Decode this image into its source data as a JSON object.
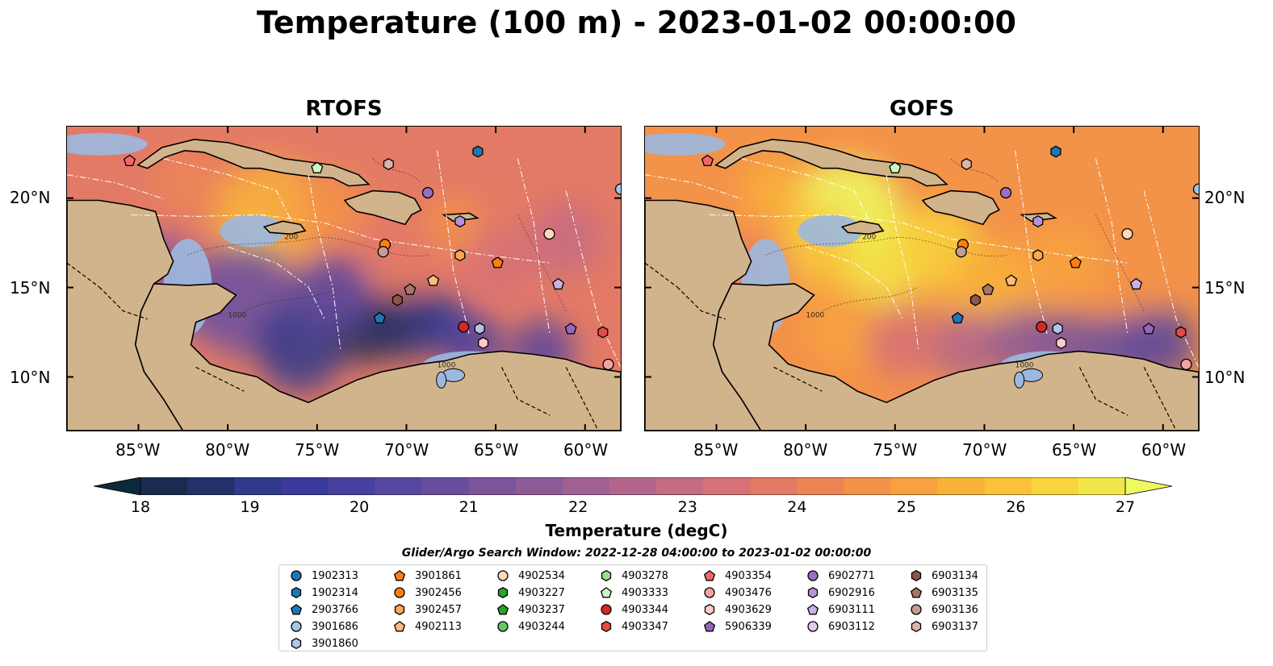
{
  "title": "Temperature (100 m) - 2023-01-02 00:00:00",
  "panels": [
    {
      "title": "RTOFS"
    },
    {
      "title": "GOFS"
    }
  ],
  "lon_ticks": [
    "85°W",
    "80°W",
    "75°W",
    "70°W",
    "65°W",
    "60°W"
  ],
  "lat_ticks": [
    "20°N",
    "15°N",
    "10°N"
  ],
  "colorbar": {
    "label": "Temperature (degC)",
    "ticks": [
      "18",
      "19",
      "20",
      "21",
      "22",
      "23",
      "24",
      "25",
      "26",
      "27"
    ],
    "colors": [
      "#0a2a3a",
      "#1a2a50",
      "#24306a",
      "#303a8c",
      "#3a3a9c",
      "#48409e",
      "#58479e",
      "#684f9e",
      "#7a559c",
      "#8c5b98",
      "#a06092",
      "#b3668c",
      "#c56b82",
      "#d67176",
      "#e37a66",
      "#ec8556",
      "#f39249",
      "#f7a23e",
      "#f9b238",
      "#fac238",
      "#f8d43d",
      "#f3e64a",
      "#eefb60"
    ]
  },
  "legend": {
    "title": "Glider/Argo Search Window: 2022-12-28 04:00:00 to 2023-01-02 00:00:00",
    "items": [
      {
        "id": "1902313",
        "marker": "circle",
        "color": "#1f77b4"
      },
      {
        "id": "1902314",
        "marker": "hexagon",
        "color": "#1f77b4"
      },
      {
        "id": "2903766",
        "marker": "pentagon",
        "color": "#1f77b4"
      },
      {
        "id": "3901686",
        "marker": "circle",
        "color": "#9ec9ea"
      },
      {
        "id": "3901860",
        "marker": "hexagon",
        "color": "#aec7e8"
      },
      {
        "id": "3901861",
        "marker": "pentagon",
        "color": "#ff7f0e"
      },
      {
        "id": "3902456",
        "marker": "circle",
        "color": "#ff7f0e"
      },
      {
        "id": "3902457",
        "marker": "hexagon",
        "color": "#ffa555"
      },
      {
        "id": "4902113",
        "marker": "pentagon",
        "color": "#ffbb78"
      },
      {
        "id": "4902534",
        "marker": "circle",
        "color": "#ffd8b8"
      },
      {
        "id": "4903227",
        "marker": "hexagon",
        "color": "#2ca02c"
      },
      {
        "id": "4903237",
        "marker": "pentagon",
        "color": "#2ca02c"
      },
      {
        "id": "4903244",
        "marker": "circle",
        "color": "#66c966"
      },
      {
        "id": "4903278",
        "marker": "hexagon",
        "color": "#98df8a"
      },
      {
        "id": "4903333",
        "marker": "pentagon",
        "color": "#ccf5c4"
      },
      {
        "id": "4903344",
        "marker": "circle",
        "color": "#d62728"
      },
      {
        "id": "4903347",
        "marker": "hexagon",
        "color": "#e34a4a"
      },
      {
        "id": "4903354",
        "marker": "pentagon",
        "color": "#f06868"
      },
      {
        "id": "4903476",
        "marker": "circle",
        "color": "#f4a3a3"
      },
      {
        "id": "4903629",
        "marker": "hexagon",
        "color": "#ffc9c9"
      },
      {
        "id": "5906339",
        "marker": "pentagon",
        "color": "#9467bd"
      },
      {
        "id": "6902771",
        "marker": "circle",
        "color": "#9a6fc4"
      },
      {
        "id": "6902916",
        "marker": "hexagon",
        "color": "#b592dc"
      },
      {
        "id": "6903111",
        "marker": "pentagon",
        "color": "#c9b0e6"
      },
      {
        "id": "6903112",
        "marker": "circle",
        "color": "#e2cdf7"
      },
      {
        "id": "6903134",
        "marker": "hexagon",
        "color": "#8c564b"
      },
      {
        "id": "6903135",
        "marker": "pentagon",
        "color": "#a8746a"
      },
      {
        "id": "6903136",
        "marker": "circle",
        "color": "#c49c94"
      },
      {
        "id": "6903137",
        "marker": "hexagon",
        "color": "#e0b3a8"
      }
    ]
  },
  "chart_data": {
    "type": "heatmap",
    "title": "Temperature (100 m) - 2023-01-02 00:00:00",
    "panels": [
      "RTOFS",
      "GOFS"
    ],
    "extent": {
      "lon": [
        -89,
        -58
      ],
      "lat": [
        7,
        24
      ]
    },
    "lon_ticks": [
      -85,
      -80,
      -75,
      -70,
      -65,
      -60
    ],
    "lat_ticks": [
      20,
      15,
      10
    ],
    "colorbar_range": [
      18,
      27
    ],
    "colorbar_label": "Temperature (degC)",
    "contour_labels": [
      "1000",
      "200"
    ],
    "glider_argo_positions": [
      {
        "id": "4903354",
        "lon": -85.5,
        "lat": 22.1
      },
      {
        "id": "1902314",
        "lon": -66.0,
        "lat": 22.6
      },
      {
        "id": "4903333",
        "lon": -75.0,
        "lat": 21.7
      },
      {
        "id": "6903137",
        "lon": -71.0,
        "lat": 21.9
      },
      {
        "id": "6902771",
        "lon": -68.8,
        "lat": 20.3
      },
      {
        "id": "3901686",
        "lon": -58.0,
        "lat": 20.5
      },
      {
        "id": "6902916",
        "lon": -67.0,
        "lat": 18.7
      },
      {
        "id": "4902534",
        "lon": -62.0,
        "lat": 18.0
      },
      {
        "id": "3902456",
        "lon": -71.2,
        "lat": 17.4
      },
      {
        "id": "6903136",
        "lon": -71.3,
        "lat": 17.0
      },
      {
        "id": "3902457",
        "lon": -67.0,
        "lat": 16.8
      },
      {
        "id": "3901861",
        "lon": -64.9,
        "lat": 16.4
      },
      {
        "id": "4902113",
        "lon": -68.5,
        "lat": 15.4
      },
      {
        "id": "6903111",
        "lon": -61.5,
        "lat": 15.2
      },
      {
        "id": "6903135",
        "lon": -69.8,
        "lat": 14.9
      },
      {
        "id": "6903134",
        "lon": -70.5,
        "lat": 14.3
      },
      {
        "id": "2903766",
        "lon": -71.5,
        "lat": 13.3
      },
      {
        "id": "4903344",
        "lon": -66.8,
        "lat": 12.8
      },
      {
        "id": "3901860",
        "lon": -65.9,
        "lat": 12.7
      },
      {
        "id": "5906339",
        "lon": -60.8,
        "lat": 12.7
      },
      {
        "id": "4903347",
        "lon": -59.0,
        "lat": 12.5
      },
      {
        "id": "4903629",
        "lon": -65.7,
        "lat": 11.9
      },
      {
        "id": "4903476",
        "lon": -58.7,
        "lat": 10.7
      }
    ]
  }
}
